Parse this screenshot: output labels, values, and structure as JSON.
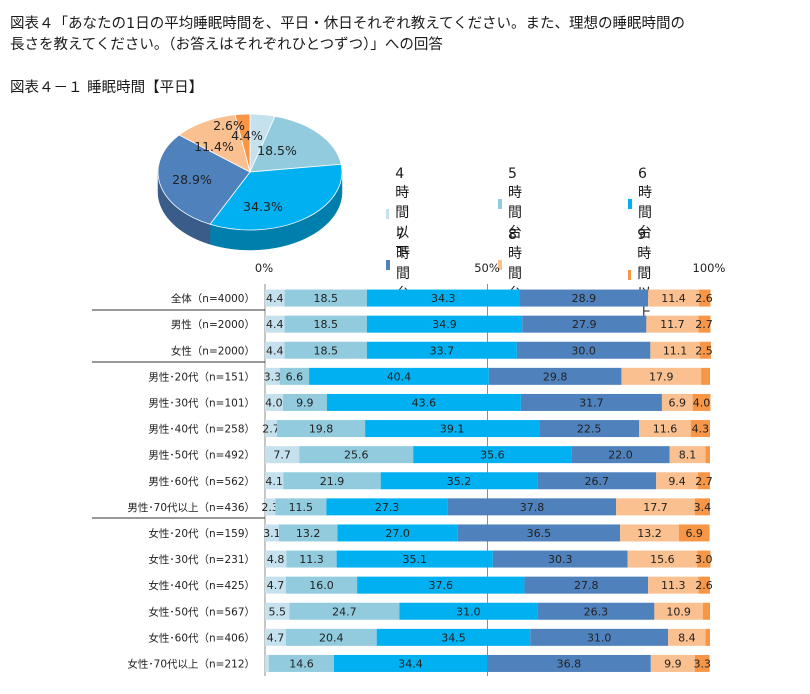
{
  "title": "図表４「あなたの1日の平均睡眠時間を、平日・休日それぞれ教えてください。また、理想の睡眠時間の\n長さを教えてください。（お答えはそれぞれひとつずつ）」への回答",
  "subtitle": "図表４－１ 睡眠時間【平日】",
  "colors": [
    "#c6e1ee",
    "#92cbde",
    "#00b0f0",
    "#4f81bd",
    "#fac090",
    "#f79646"
  ],
  "chart_data": [
    {
      "type": "pie",
      "series_names": [
        "4時間以下",
        "5時間台",
        "6時間台",
        "7時間台",
        "8時間台",
        "9時間以上"
      ],
      "values": [
        4.4,
        18.5,
        34.3,
        28.9,
        11.4,
        2.6
      ],
      "data_labels": [
        "4.4%",
        "18.5%",
        "34.3%",
        "28.9%",
        "11.4%",
        "2.6%"
      ],
      "legend_position": "right"
    },
    {
      "type": "bar",
      "orientation": "horizontal-stacked-100",
      "xlim": [
        0,
        100
      ],
      "x_ticks": [
        "0%",
        "50%",
        "100%"
      ],
      "series_names": [
        "4時間以下",
        "5時間台",
        "6時間台",
        "7時間台",
        "8時間台",
        "9時間以上"
      ],
      "categories": [
        "全体（n=4000）",
        "男性（n=2000）",
        "女性（n=2000）",
        "男性･20代（n=151）",
        "男性･30代（n=101）",
        "男性･40代（n=258）",
        "男性･50代（n=492）",
        "男性･60代（n=562）",
        "男性･70代以上（n=436）",
        "女性･20代（n=159）",
        "女性･30代（n=231）",
        "女性･40代（n=425）",
        "女性･50代（n=567）",
        "女性･60代（n=406）",
        "女性･70代以上（n=212）"
      ],
      "values": [
        [
          4.4,
          18.5,
          34.3,
          28.9,
          11.4,
          2.6
        ],
        [
          4.4,
          18.5,
          34.9,
          27.9,
          11.7,
          2.7
        ],
        [
          4.4,
          18.5,
          33.7,
          30.0,
          11.1,
          2.5
        ],
        [
          3.3,
          6.6,
          40.4,
          29.8,
          17.9,
          2.0
        ],
        [
          4.0,
          9.9,
          43.6,
          31.7,
          6.9,
          4.0
        ],
        [
          2.7,
          19.8,
          39.1,
          22.5,
          11.6,
          4.3
        ],
        [
          7.7,
          25.6,
          35.6,
          22.0,
          8.1,
          1.0
        ],
        [
          4.1,
          21.9,
          35.2,
          26.7,
          9.4,
          2.7
        ],
        [
          2.3,
          11.5,
          27.3,
          37.8,
          17.7,
          3.4
        ],
        [
          3.1,
          13.2,
          27.0,
          36.5,
          13.2,
          6.9
        ],
        [
          4.8,
          11.3,
          35.1,
          30.3,
          15.6,
          3.0
        ],
        [
          4.7,
          16.0,
          37.6,
          27.8,
          11.3,
          2.6
        ],
        [
          5.5,
          24.7,
          31.0,
          26.3,
          10.9,
          1.6
        ],
        [
          4.7,
          20.4,
          34.5,
          31.0,
          8.4,
          1.0
        ],
        [
          0.9,
          14.6,
          34.4,
          36.8,
          9.9,
          3.3
        ]
      ],
      "labels": [
        [
          "4.4",
          "18.5",
          "34.3",
          "28.9",
          "11.4",
          "2.6"
        ],
        [
          "4.4",
          "18.5",
          "34.9",
          "27.9",
          "11.7",
          "2.7"
        ],
        [
          "4.4",
          "18.5",
          "33.7",
          "30.0",
          "11.1",
          "2.5"
        ],
        [
          "3.3",
          "6.6",
          "40.4",
          "29.8",
          "17.9",
          ""
        ],
        [
          "4.0",
          "9.9",
          "43.6",
          "31.7",
          "6.9",
          "4.0"
        ],
        [
          "2.7",
          "19.8",
          "39.1",
          "22.5",
          "11.6",
          "4.3"
        ],
        [
          "7.7",
          "25.6",
          "35.6",
          "22.0",
          "8.1",
          ""
        ],
        [
          "4.1",
          "21.9",
          "35.2",
          "26.7",
          "9.4",
          "2.7"
        ],
        [
          "2.3",
          "11.5",
          "27.3",
          "37.8",
          "17.7",
          "3.4"
        ],
        [
          "3.1",
          "13.2",
          "27.0",
          "36.5",
          "13.2",
          "6.9"
        ],
        [
          "4.8",
          "11.3",
          "35.1",
          "30.3",
          "15.6",
          "3.0"
        ],
        [
          "4.7",
          "16.0",
          "37.6",
          "27.8",
          "11.3",
          "2.6"
        ],
        [
          "5.5",
          "24.7",
          "31.0",
          "26.3",
          "10.9",
          ""
        ],
        [
          "4.7",
          "20.4",
          "34.5",
          "31.0",
          "8.4",
          ""
        ],
        [
          "",
          "14.6",
          "34.4",
          "36.8",
          "9.9",
          "3.3"
        ]
      ]
    }
  ]
}
